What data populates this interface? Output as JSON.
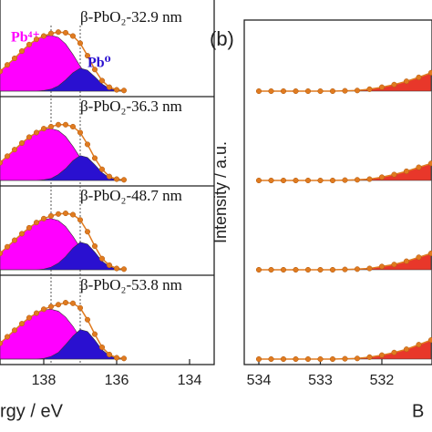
{
  "chart_data": [
    {
      "type": "line",
      "x_label": "rgy / eV",
      "xlim": [
        139.2,
        133.325
      ],
      "xticks": [
        138,
        136,
        134
      ],
      "vlines": [
        137.8,
        137.0
      ],
      "annotations": [
        {
          "text": "Pb⁴⁺",
          "color": "#ff00ff"
        },
        {
          "text": "Pb⁰",
          "color": "#2a10d0"
        }
      ],
      "x": [
        139.2,
        139.0,
        138.8,
        138.6,
        138.4,
        138.2,
        138.0,
        137.8,
        137.6,
        137.4,
        137.2,
        137.0,
        136.8,
        136.6,
        136.4,
        136.2,
        136.0,
        135.8
      ],
      "spectra": [
        {
          "name": "β-PbO₂-32.9 nm",
          "series": [
            {
              "color": "#ff00ff",
              "fill": true,
              "values": [
                0.3,
                0.4,
                0.5,
                0.61,
                0.71,
                0.79,
                0.84,
                0.85,
                0.82,
                0.72,
                0.56,
                0.38,
                0.22,
                0.11,
                0.05,
                0.02,
                0.01,
                0
              ]
            },
            {
              "color": "#2a10d0",
              "fill": true,
              "values": [
                0,
                0,
                0,
                0,
                0,
                0,
                0.01,
                0.03,
                0.08,
                0.17,
                0.28,
                0.35,
                0.32,
                0.22,
                0.11,
                0.04,
                0.01,
                0
              ]
            },
            {
              "color": "#e07b20",
              "marker": true,
              "values": [
                0.3,
                0.4,
                0.5,
                0.61,
                0.71,
                0.79,
                0.84,
                0.88,
                0.9,
                0.89,
                0.84,
                0.73,
                0.54,
                0.33,
                0.16,
                0.06,
                0.02,
                0.01
              ]
            }
          ]
        },
        {
          "name": "β-PbO₂-36.3 nm",
          "series": [
            {
              "color": "#ff00ff",
              "fill": true,
              "values": [
                0.27,
                0.37,
                0.47,
                0.57,
                0.66,
                0.73,
                0.78,
                0.79,
                0.76,
                0.67,
                0.52,
                0.35,
                0.2,
                0.1,
                0.05,
                0.02,
                0.01,
                0
              ]
            },
            {
              "color": "#2a10d0",
              "fill": true,
              "values": [
                0,
                0,
                0,
                0,
                0,
                0,
                0.01,
                0.03,
                0.09,
                0.18,
                0.3,
                0.38,
                0.35,
                0.24,
                0.12,
                0.04,
                0.01,
                0
              ]
            },
            {
              "color": "#e07b20",
              "marker": true,
              "values": [
                0.27,
                0.37,
                0.47,
                0.57,
                0.66,
                0.73,
                0.79,
                0.82,
                0.85,
                0.85,
                0.82,
                0.73,
                0.55,
                0.34,
                0.17,
                0.06,
                0.02,
                0.01
              ]
            }
          ]
        },
        {
          "name": "β-PbO₂-48.7 nm",
          "series": [
            {
              "color": "#ff00ff",
              "fill": true,
              "values": [
                0.25,
                0.35,
                0.45,
                0.55,
                0.64,
                0.72,
                0.77,
                0.78,
                0.75,
                0.66,
                0.51,
                0.34,
                0.19,
                0.09,
                0.04,
                0.02,
                0.01,
                0
              ]
            },
            {
              "color": "#2a10d0",
              "fill": true,
              "values": [
                0,
                0,
                0,
                0,
                0,
                0,
                0.01,
                0.04,
                0.1,
                0.2,
                0.33,
                0.42,
                0.39,
                0.27,
                0.13,
                0.05,
                0.01,
                0
              ]
            },
            {
              "color": "#e07b20",
              "marker": true,
              "values": [
                0.25,
                0.35,
                0.45,
                0.55,
                0.64,
                0.72,
                0.78,
                0.82,
                0.85,
                0.86,
                0.84,
                0.76,
                0.58,
                0.36,
                0.17,
                0.07,
                0.02,
                0.01
              ]
            }
          ]
        },
        {
          "name": "β-PbO₂-53.8 nm",
          "series": [
            {
              "color": "#ff00ff",
              "fill": true,
              "values": [
                0.24,
                0.34,
                0.44,
                0.54,
                0.63,
                0.7,
                0.75,
                0.76,
                0.73,
                0.64,
                0.5,
                0.33,
                0.18,
                0.09,
                0.04,
                0.02,
                0.01,
                0
              ]
            },
            {
              "color": "#2a10d0",
              "fill": true,
              "values": [
                0,
                0,
                0,
                0,
                0,
                0,
                0.01,
                0.04,
                0.1,
                0.22,
                0.35,
                0.45,
                0.42,
                0.29,
                0.14,
                0.05,
                0.01,
                0
              ]
            },
            {
              "color": "#e07b20",
              "marker": true,
              "values": [
                0.24,
                0.34,
                0.44,
                0.54,
                0.63,
                0.7,
                0.76,
                0.8,
                0.83,
                0.86,
                0.85,
                0.78,
                0.6,
                0.38,
                0.18,
                0.07,
                0.02,
                0.01
              ]
            }
          ]
        }
      ]
    },
    {
      "type": "line",
      "panel_label": "(b)",
      "y_label": "Intensity / a.u.",
      "x_label": "B",
      "xlim": [
        534.237,
        531.185
      ],
      "xticks": [
        534,
        533,
        532
      ],
      "x": [
        534.0,
        533.8,
        533.6,
        533.4,
        533.2,
        533.0,
        532.8,
        532.6,
        532.4,
        532.2,
        532.0,
        531.8,
        531.6,
        531.4,
        531.2
      ],
      "spectra": [
        {
          "series": [
            {
              "color": "#e8372a",
              "fill": true,
              "values": [
                0,
                0,
                0,
                0,
                0,
                0,
                0,
                0.005,
                0.01,
                0.03,
                0.06,
                0.1,
                0.15,
                0.21,
                0.28
              ]
            },
            {
              "color": "#e07b20",
              "marker": true,
              "values": [
                0,
                0,
                0,
                0,
                0,
                0,
                0,
                0.005,
                0.01,
                0.03,
                0.06,
                0.1,
                0.15,
                0.21,
                0.28
              ]
            }
          ]
        },
        {
          "series": [
            {
              "color": "#e8372a",
              "fill": true,
              "values": [
                0,
                0,
                0,
                0,
                0,
                0,
                0,
                0.005,
                0.01,
                0.02,
                0.05,
                0.09,
                0.14,
                0.2,
                0.26
              ]
            },
            {
              "color": "#e07b20",
              "marker": true,
              "values": [
                0,
                0,
                0,
                0,
                0,
                0,
                0,
                0.005,
                0.01,
                0.02,
                0.05,
                0.09,
                0.14,
                0.2,
                0.26
              ]
            }
          ]
        },
        {
          "series": [
            {
              "color": "#e8372a",
              "fill": true,
              "values": [
                0,
                0,
                0,
                0,
                0,
                0,
                0,
                0.005,
                0.01,
                0.02,
                0.05,
                0.08,
                0.13,
                0.19,
                0.25
              ]
            },
            {
              "color": "#e07b20",
              "marker": true,
              "values": [
                0,
                0,
                0,
                0,
                0,
                0,
                0,
                0.005,
                0.01,
                0.02,
                0.05,
                0.08,
                0.13,
                0.19,
                0.25
              ]
            }
          ]
        },
        {
          "series": [
            {
              "color": "#e8372a",
              "fill": true,
              "values": [
                0,
                0,
                0,
                0,
                0,
                0,
                0,
                0.005,
                0.01,
                0.03,
                0.06,
                0.1,
                0.15,
                0.22,
                0.29
              ]
            },
            {
              "color": "#e07b20",
              "marker": true,
              "values": [
                0,
                0,
                0,
                0,
                0,
                0,
                0,
                0.005,
                0.01,
                0.03,
                0.06,
                0.1,
                0.15,
                0.22,
                0.29
              ]
            }
          ]
        }
      ]
    }
  ]
}
